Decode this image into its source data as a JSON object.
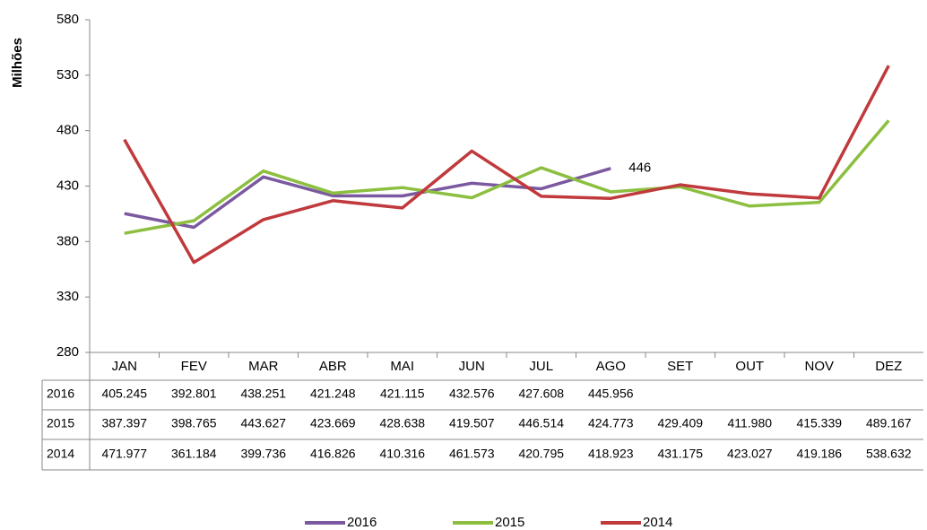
{
  "chart_data": {
    "type": "line",
    "y_label": "Milhões",
    "categories": [
      "JAN",
      "FEV",
      "MAR",
      "ABR",
      "MAI",
      "JUN",
      "JUL",
      "AGO",
      "SET",
      "OUT",
      "NOV",
      "DEZ"
    ],
    "series": [
      {
        "name": "2016",
        "color": "#7b59a0",
        "values": [
          405.245,
          392.801,
          438.251,
          421.248,
          421.115,
          432.576,
          427.608,
          445.956,
          null,
          null,
          null,
          null
        ],
        "value_labels": [
          "405.245",
          "392.801",
          "438.251",
          "421.248",
          "421.115",
          "432.576",
          "427.608",
          "445.956",
          null,
          null,
          null,
          null
        ]
      },
      {
        "name": "2015",
        "color": "#8cbf3f",
        "values": [
          387.397,
          398.765,
          443.627,
          423.669,
          428.638,
          419.507,
          446.514,
          424.773,
          429.409,
          411.98,
          415.339,
          489.167
        ],
        "value_labels": [
          "387.397",
          "398.765",
          "443.627",
          "423.669",
          "428.638",
          "419.507",
          "446.514",
          "424.773",
          "429.409",
          "411.980",
          "415.339",
          "489.167"
        ]
      },
      {
        "name": "2014",
        "color": "#c0393c",
        "values": [
          471.977,
          361.184,
          399.736,
          416.826,
          410.316,
          461.573,
          420.795,
          418.923,
          431.175,
          423.027,
          419.186,
          538.632
        ],
        "value_labels": [
          "471.977",
          "361.184",
          "399.736",
          "416.826",
          "410.316",
          "461.573",
          "420.795",
          "418.923",
          "431.175",
          "423.027",
          "419.186",
          "538.632"
        ]
      }
    ],
    "annotation": "446",
    "ylim": [
      280,
      580
    ],
    "yticks": [
      280,
      330,
      380,
      430,
      480,
      530,
      580
    ],
    "grid": false,
    "legend": "bottom"
  }
}
